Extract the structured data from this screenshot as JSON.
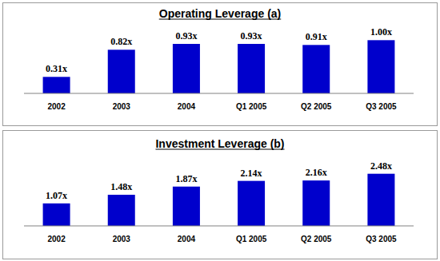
{
  "chart_data": [
    {
      "type": "bar",
      "title": "Operating Leverage (a)",
      "categories": [
        "2002",
        "2003",
        "2004",
        "Q1 2005",
        "Q2 2005",
        "Q3 2005"
      ],
      "values": [
        0.31,
        0.82,
        0.93,
        0.93,
        0.91,
        1.0
      ],
      "value_labels": [
        "0.31x",
        "0.82x",
        "0.93x",
        "0.93x",
        "0.91x",
        "1.00x"
      ],
      "color": "#0000cc",
      "ylim": [
        0,
        1.2
      ],
      "data_labels": true,
      "tick_labels": "x",
      "grid": false
    },
    {
      "type": "bar",
      "title": "Investment Leverage (b)",
      "categories": [
        "2002",
        "2003",
        "2004",
        "Q1 2005",
        "Q2 2005",
        "Q3 2005"
      ],
      "values": [
        1.07,
        1.48,
        1.87,
        2.14,
        2.16,
        2.48
      ],
      "value_labels": [
        "1.07x",
        "1.48x",
        "1.87x",
        "2.14x",
        "2.16x",
        "2.48x"
      ],
      "color": "#0000cc",
      "ylim": [
        0,
        3
      ],
      "data_labels": true,
      "tick_labels": "x",
      "grid": false
    }
  ]
}
